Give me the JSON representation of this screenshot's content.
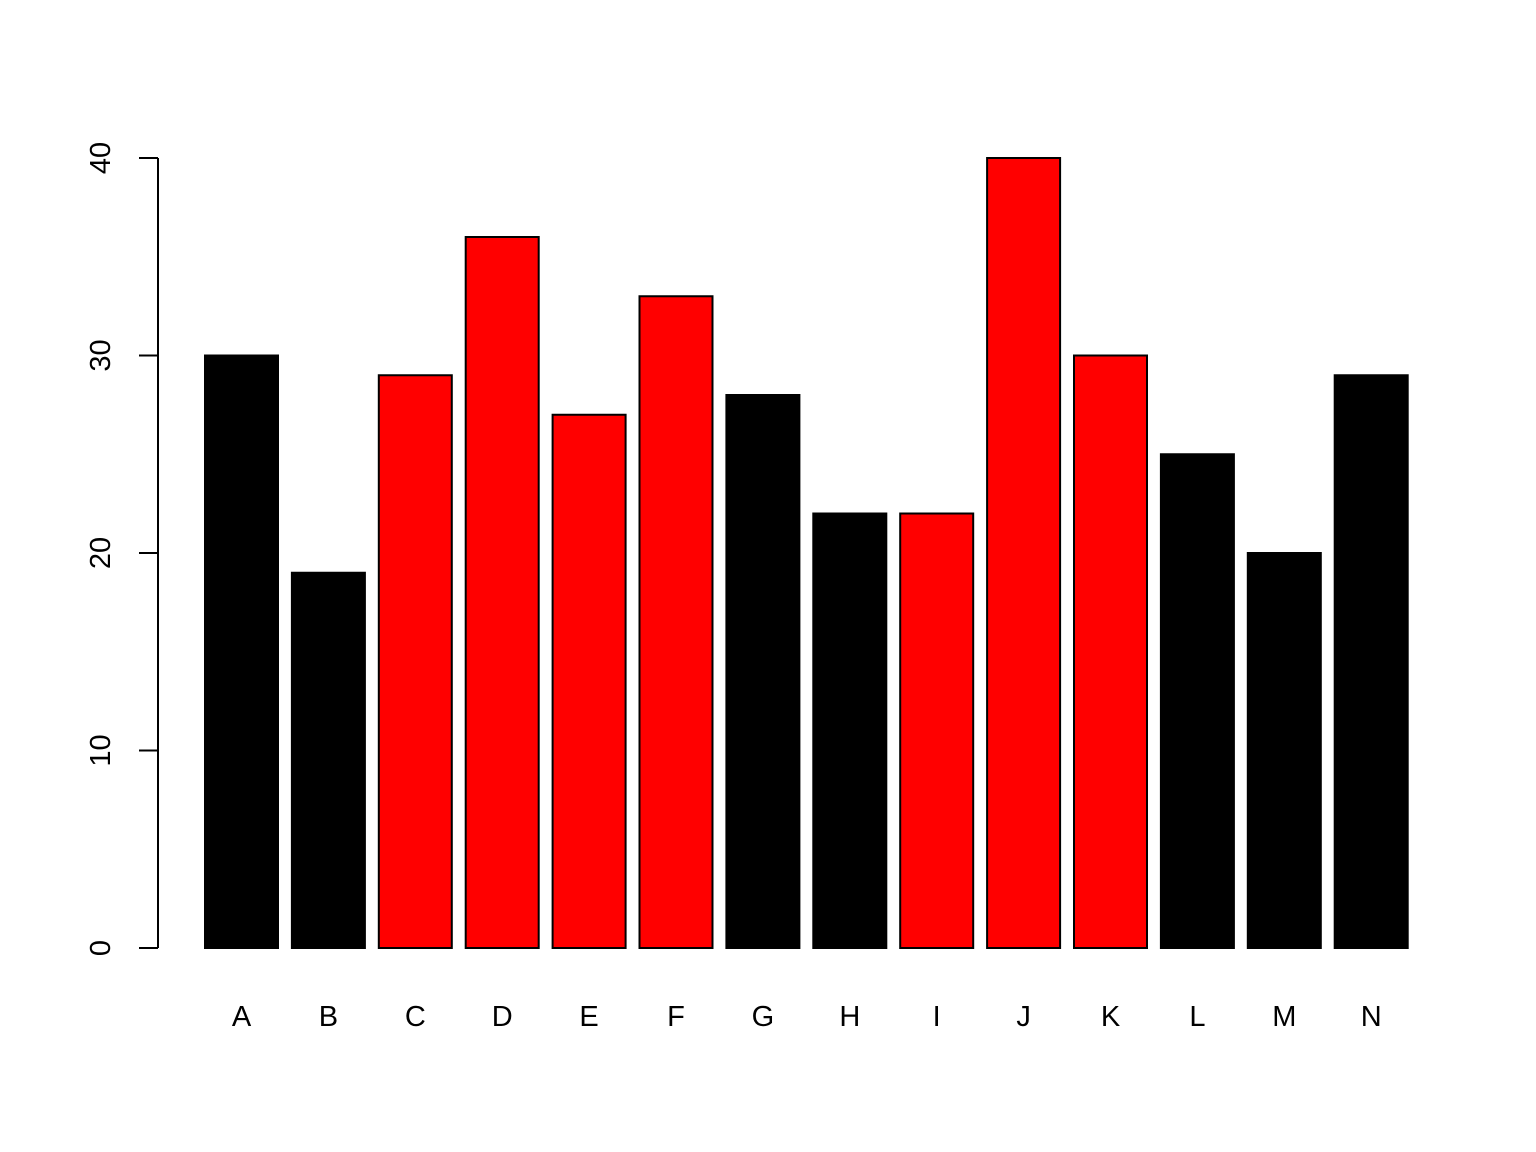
{
  "chart_data": {
    "type": "bar",
    "title": "",
    "xlabel": "",
    "ylabel": "",
    "categories": [
      "A",
      "B",
      "C",
      "D",
      "E",
      "F",
      "G",
      "H",
      "I",
      "J",
      "K",
      "L",
      "M",
      "N"
    ],
    "values": [
      30,
      19,
      29,
      36,
      27,
      33,
      28,
      22,
      22,
      40,
      30,
      25,
      20,
      29
    ],
    "bar_colors": [
      "#000000",
      "#000000",
      "#ff0000",
      "#ff0000",
      "#ff0000",
      "#ff0000",
      "#000000",
      "#000000",
      "#ff0000",
      "#ff0000",
      "#ff0000",
      "#000000",
      "#000000",
      "#000000"
    ],
    "bar_border_color": "#000000",
    "ylim": [
      0,
      40
    ],
    "y_ticks": [
      0,
      10,
      20,
      30,
      40
    ],
    "y_tick_labels": [
      "0",
      "10",
      "20",
      "30",
      "40"
    ],
    "grid": false,
    "legend": "none"
  }
}
